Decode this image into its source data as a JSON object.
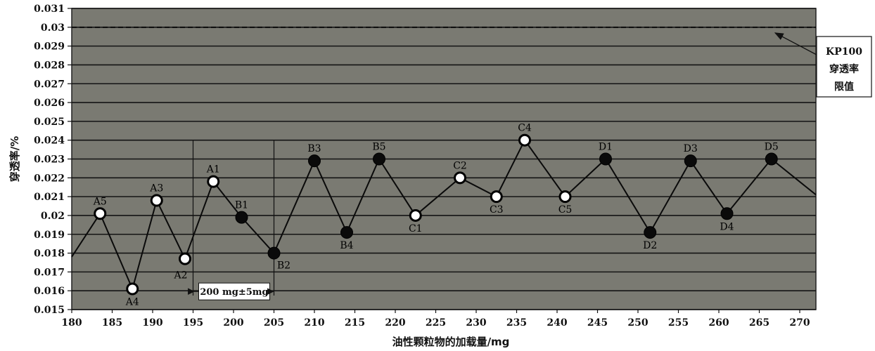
{
  "chart_data": {
    "type": "line",
    "xlabel": "油性颗粒物的加载量/mg",
    "ylabel": "穿透率/%",
    "xlim": [
      180,
      272
    ],
    "ylim": [
      0.015,
      0.031
    ],
    "xticks": [
      "180",
      "185",
      "190",
      "195",
      "200",
      "205",
      "210",
      "215",
      "220",
      "225",
      "230",
      "235",
      "240",
      "245",
      "250",
      "255",
      "260",
      "265",
      "270"
    ],
    "yticks": [
      "0.015",
      "0.016",
      "0.017",
      "0.018",
      "0.019",
      "0.02",
      "0.021",
      "0.022",
      "0.023",
      "0.024",
      "0.025",
      "0.026",
      "0.027",
      "0.028",
      "0.029",
      "0.03",
      "0.031"
    ],
    "grid": true,
    "series": [
      {
        "points": [
          {
            "x": 180.0,
            "y": 0.0178,
            "label": "",
            "marker": "none"
          },
          {
            "x": 183.5,
            "y": 0.0201,
            "label": "A5",
            "marker": "open"
          },
          {
            "x": 187.5,
            "y": 0.0161,
            "label": "A4",
            "marker": "open"
          },
          {
            "x": 190.5,
            "y": 0.0208,
            "label": "A3",
            "marker": "open"
          },
          {
            "x": 194.0,
            "y": 0.0177,
            "label": "A2",
            "marker": "open"
          },
          {
            "x": 197.5,
            "y": 0.0218,
            "label": "A1",
            "marker": "open"
          },
          {
            "x": 201.0,
            "y": 0.0199,
            "label": "B1",
            "marker": "filled"
          },
          {
            "x": 205.0,
            "y": 0.018,
            "label": "B2",
            "marker": "filled"
          },
          {
            "x": 210.0,
            "y": 0.0229,
            "label": "B3",
            "marker": "filled"
          },
          {
            "x": 214.0,
            "y": 0.0191,
            "label": "B4",
            "marker": "filled"
          },
          {
            "x": 218.0,
            "y": 0.023,
            "label": "B5",
            "marker": "filled"
          },
          {
            "x": 222.5,
            "y": 0.02,
            "label": "C1",
            "marker": "open"
          },
          {
            "x": 228.0,
            "y": 0.022,
            "label": "C2",
            "marker": "open"
          },
          {
            "x": 232.5,
            "y": 0.021,
            "label": "C3",
            "marker": "open"
          },
          {
            "x": 236.0,
            "y": 0.024,
            "label": "C4",
            "marker": "open"
          },
          {
            "x": 241.0,
            "y": 0.021,
            "label": "C5",
            "marker": "open"
          },
          {
            "x": 246.0,
            "y": 0.023,
            "label": "D1",
            "marker": "filled"
          },
          {
            "x": 251.5,
            "y": 0.0191,
            "label": "D2",
            "marker": "filled"
          },
          {
            "x": 256.5,
            "y": 0.0229,
            "label": "D3",
            "marker": "filled"
          },
          {
            "x": 261.0,
            "y": 0.0201,
            "label": "D4",
            "marker": "filled"
          },
          {
            "x": 266.5,
            "y": 0.023,
            "label": "D5",
            "marker": "filled"
          },
          {
            "x": 272.0,
            "y": 0.0211,
            "label": "",
            "marker": "none"
          }
        ]
      }
    ],
    "limit_line": {
      "y": 0.03,
      "style": "dashed"
    },
    "annotation": {
      "lines": [
        "KP100",
        "穿透率",
        "限值"
      ],
      "points_to_y": 0.03
    },
    "range_marker": {
      "text": "200 mg±5mg",
      "x_from": 195,
      "x_to": 205
    }
  },
  "colors": {
    "plot_background": "#7a7a72",
    "gridline": "#141414",
    "series_line": "#0a0a0a",
    "open_marker_fill": "#ffffff",
    "filled_marker_fill": "#0a0a0a"
  }
}
